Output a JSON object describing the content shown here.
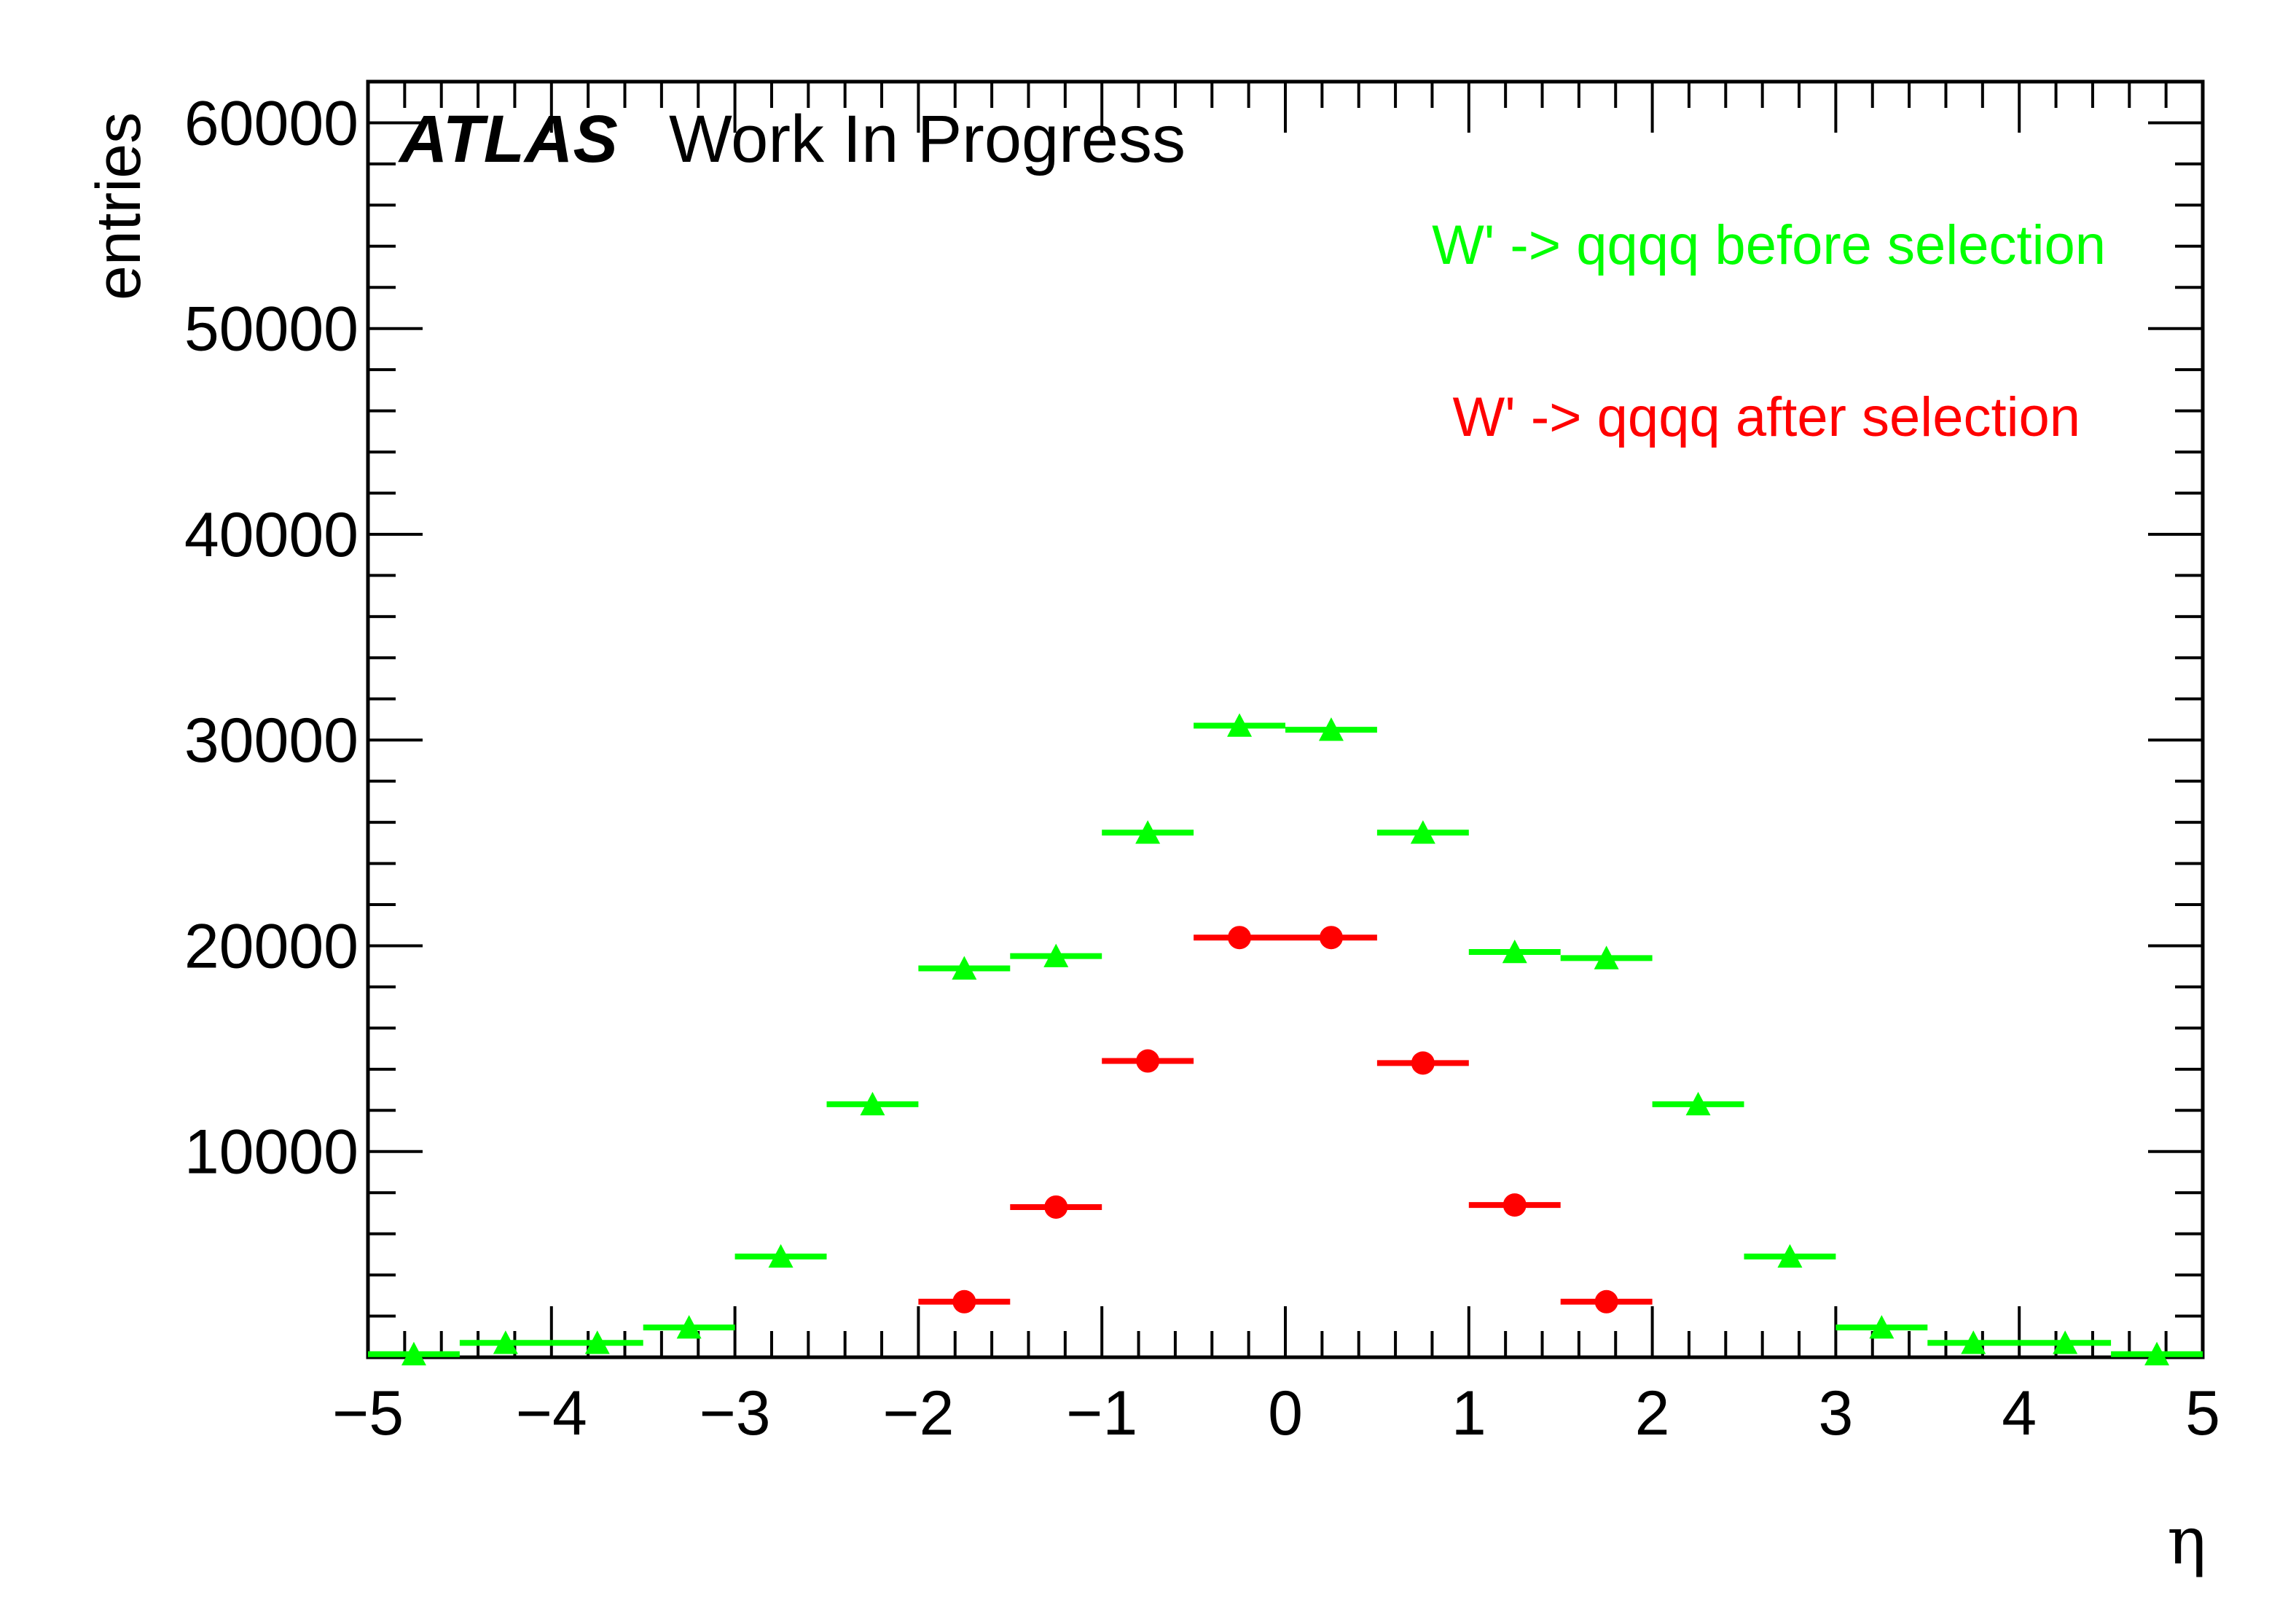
{
  "chart_data": {
    "type": "scatter",
    "xlabel": "η",
    "ylabel": "entries",
    "xlim": [
      -5,
      5
    ],
    "ylim": [
      0,
      62000
    ],
    "grid": false,
    "legend_placement": "top-right",
    "x_ticks": [
      "−5",
      "−4",
      "−3",
      "−2",
      "−1",
      "0",
      "1",
      "2",
      "3",
      "4",
      "5"
    ],
    "y_ticks": [
      "10000",
      "20000",
      "30000",
      "40000",
      "50000",
      "60000"
    ],
    "annotation": {
      "bold": "ATLAS",
      "rest": "Work In Progress"
    },
    "bin_width": 0.5,
    "series": [
      {
        "name": "W' -> qqqq before selection",
        "color": "#00ff00",
        "marker": "triangle-icon",
        "x": [
          -4.75,
          -4.25,
          -3.75,
          -3.25,
          -2.75,
          -2.25,
          -1.75,
          -1.25,
          -0.75,
          -0.25,
          0.25,
          0.75,
          1.25,
          1.75,
          2.25,
          2.75,
          3.25,
          3.75,
          4.25,
          4.75
        ],
        "values": [
          150,
          700,
          700,
          1450,
          4900,
          12300,
          18900,
          19500,
          25500,
          30700,
          30500,
          25500,
          19700,
          19400,
          12300,
          4900,
          1450,
          700,
          700,
          150
        ]
      },
      {
        "name": "W' -> qqqq after selection",
        "color": "#ff0000",
        "marker": "circle-icon",
        "x": [
          -1.75,
          -1.25,
          -0.75,
          -0.25,
          0.25,
          0.75,
          1.25,
          1.75
        ],
        "values": [
          2700,
          7300,
          14400,
          20400,
          20400,
          14300,
          7400,
          2700
        ]
      }
    ]
  }
}
